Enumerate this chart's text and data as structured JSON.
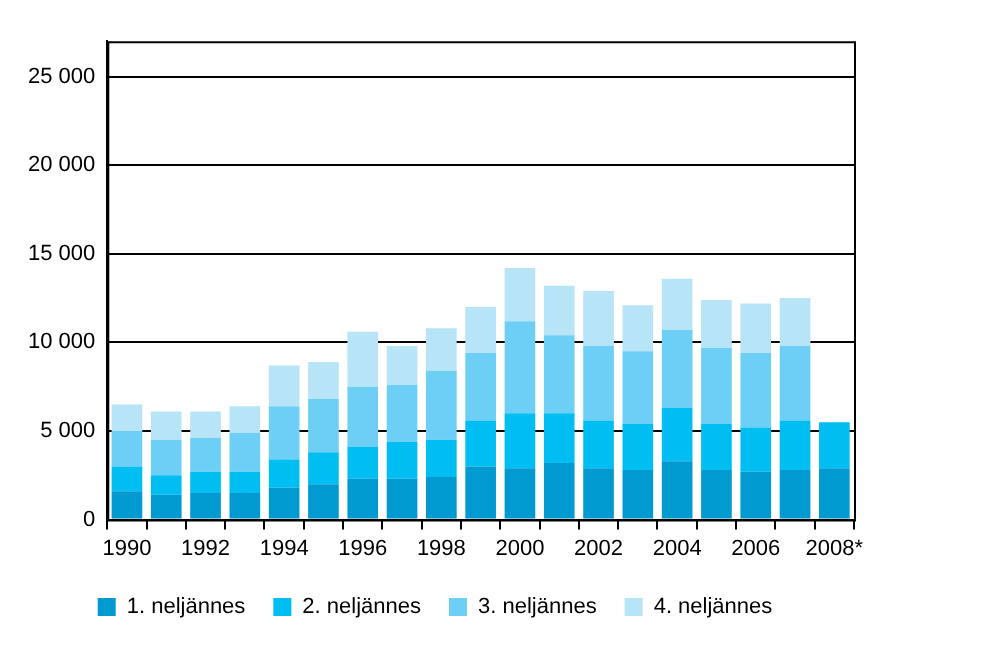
{
  "chart_data": {
    "type": "bar",
    "stacked": true,
    "categories": [
      "1990",
      null,
      "1992",
      null,
      "1994",
      null,
      "1996",
      null,
      "1998",
      null,
      "2000",
      null,
      "2002",
      null,
      "2004",
      null,
      "2006",
      null,
      "2008*"
    ],
    "series": [
      {
        "name": "1. neljännes",
        "color": "#0099d0",
        "values": [
          1600,
          1400,
          1500,
          1500,
          1800,
          2000,
          2300,
          2300,
          2400,
          3000,
          2900,
          3200,
          2900,
          2800,
          3300,
          2800,
          2700,
          2800,
          2900
        ]
      },
      {
        "name": "2. neljännes",
        "color": "#00bef2",
        "values": [
          1400,
          1100,
          1200,
          1200,
          1600,
          1800,
          1800,
          2100,
          2100,
          2600,
          3100,
          2800,
          2700,
          2600,
          3000,
          2600,
          2500,
          2800,
          2600
        ]
      },
      {
        "name": "3. neljännes",
        "color": "#6dcff6",
        "values": [
          2000,
          2000,
          1900,
          2200,
          3000,
          3000,
          3400,
          3200,
          3900,
          3800,
          5200,
          4400,
          4200,
          4100,
          4400,
          4300,
          4200,
          4200,
          null
        ]
      },
      {
        "name": "4. neljännes",
        "color": "#b8e4f8",
        "values": [
          1500,
          1600,
          1500,
          1500,
          2300,
          2100,
          3100,
          2200,
          2400,
          2600,
          3000,
          2800,
          3100,
          2600,
          2900,
          2700,
          2800,
          2700,
          null
        ]
      }
    ],
    "ylim": [
      0,
      27000
    ],
    "yticks": [
      0,
      {
        "value": 5000,
        "label": "5 000"
      },
      {
        "value": 10000,
        "label": "10 000"
      },
      {
        "value": 15000,
        "label": "15 000"
      },
      {
        "value": 20000,
        "label": "20 000"
      },
      {
        "value": 25000,
        "label": "25 000"
      }
    ],
    "grid": "y",
    "legend": "bottom"
  }
}
